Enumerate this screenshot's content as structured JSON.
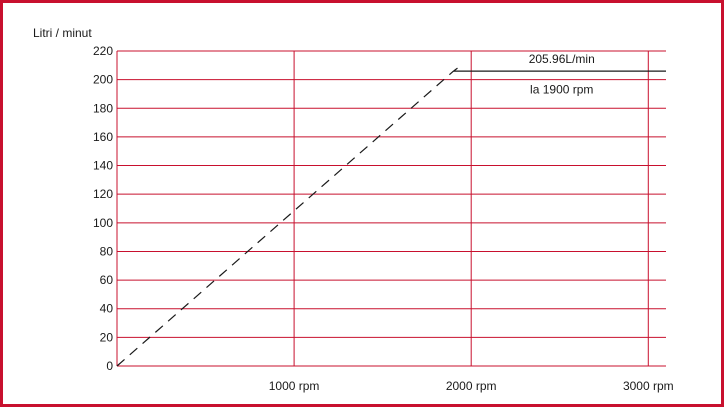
{
  "chart_data": {
    "type": "line",
    "ylabel": "Litri / minut",
    "xlabel": "",
    "ylim": [
      0,
      220
    ],
    "xlim": [
      0,
      3100
    ],
    "y_ticks": [
      0,
      20,
      40,
      60,
      80,
      100,
      120,
      140,
      160,
      180,
      200,
      220
    ],
    "x_ticks": [
      {
        "value": 1000,
        "label": "1000 rpm"
      },
      {
        "value": 2000,
        "label": "2000 rpm"
      },
      {
        "value": 3000,
        "label": "3000 rpm"
      }
    ],
    "grid": true,
    "series": [
      {
        "style": "dashed",
        "x": [
          0,
          1900
        ],
        "y": [
          0,
          205.96
        ]
      },
      {
        "style": "solid",
        "x": [
          1900,
          3100
        ],
        "y": [
          205.96,
          205.96
        ]
      }
    ],
    "annotation": {
      "value_text": "205.96L/min",
      "rpm_text": "la 1900 rpm",
      "x": 1900,
      "y": 205.96
    },
    "colors": {
      "grid": "#c8102e",
      "frame": "#c8102e",
      "line": "#1a1a1a",
      "text": "#1a1a1a"
    }
  }
}
